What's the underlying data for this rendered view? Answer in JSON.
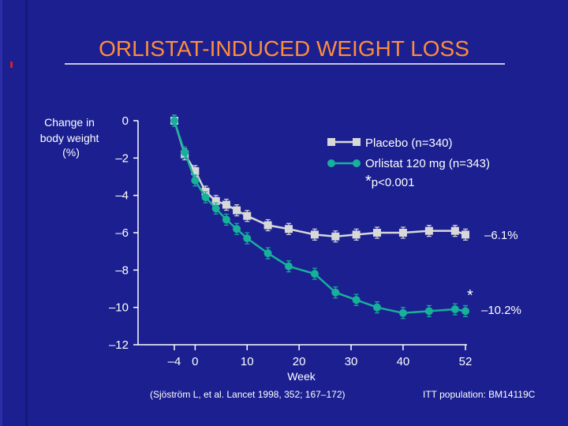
{
  "slide": {
    "title": "ORLISTAT-INDUCED WEIGHT LOSS",
    "citation": "(Sjöström L, et al. Lancet 1998, 352; 167–172)",
    "footer_right": "ITT population: BM14119C"
  },
  "colors": {
    "background": "#1b1f8f",
    "title": "#ff8c3a",
    "placebo": "#d8d8d8",
    "orlistat": "#17b09a",
    "text": "#ffffff"
  },
  "chart_data": {
    "type": "line",
    "title": "ORLISTAT-INDUCED WEIGHT LOSS",
    "xlabel": "Week",
    "ylabel": "Change in body weight (%)",
    "ylabel_lines": [
      "Change in",
      "body weight",
      "(%)"
    ],
    "xlim": [
      -4,
      52
    ],
    "ylim": [
      -12,
      0
    ],
    "x_ticks": [
      -4,
      0,
      10,
      20,
      30,
      40,
      52
    ],
    "x_tick_labels": [
      "–4",
      "0",
      "10",
      "20",
      "30",
      "40",
      "52"
    ],
    "y_ticks": [
      0,
      -2,
      -4,
      -6,
      -8,
      -10,
      -12
    ],
    "y_tick_labels": [
      "0",
      "–2",
      "–4",
      "–6",
      "–8",
      "–10",
      "–12"
    ],
    "grid": false,
    "legend_position": "top-right",
    "series": [
      {
        "name": "Placebo (n=340)",
        "color": "#d8d8d8",
        "marker": "square",
        "x": [
          -4,
          -2,
          0,
          2,
          4,
          6,
          8,
          10,
          14,
          18,
          23,
          27,
          31,
          35,
          40,
          45,
          50,
          52
        ],
        "y": [
          0,
          -1.8,
          -2.7,
          -3.8,
          -4.3,
          -4.5,
          -4.8,
          -5.1,
          -5.6,
          -5.8,
          -6.1,
          -6.2,
          -6.1,
          -6.0,
          -6.0,
          -5.9,
          -5.9,
          -6.1
        ],
        "end_label": "–6.1%"
      },
      {
        "name": "Orlistat 120 mg (n=343)",
        "color": "#17b09a",
        "marker": "circle",
        "x": [
          -4,
          -2,
          0,
          2,
          4,
          6,
          8,
          10,
          14,
          18,
          23,
          27,
          31,
          35,
          40,
          45,
          50,
          52
        ],
        "y": [
          0,
          -1.7,
          -3.2,
          -4.1,
          -4.7,
          -5.3,
          -5.8,
          -6.3,
          -7.1,
          -7.8,
          -8.2,
          -9.2,
          -9.6,
          -10.0,
          -10.3,
          -10.2,
          -10.1,
          -10.2
        ],
        "end_label": "–10.2%"
      }
    ],
    "annotations": [
      {
        "text": "*",
        "x": 52,
        "y": -9.4
      },
      {
        "text": "p<0.001",
        "prefix": "*",
        "location": "legend"
      }
    ]
  }
}
